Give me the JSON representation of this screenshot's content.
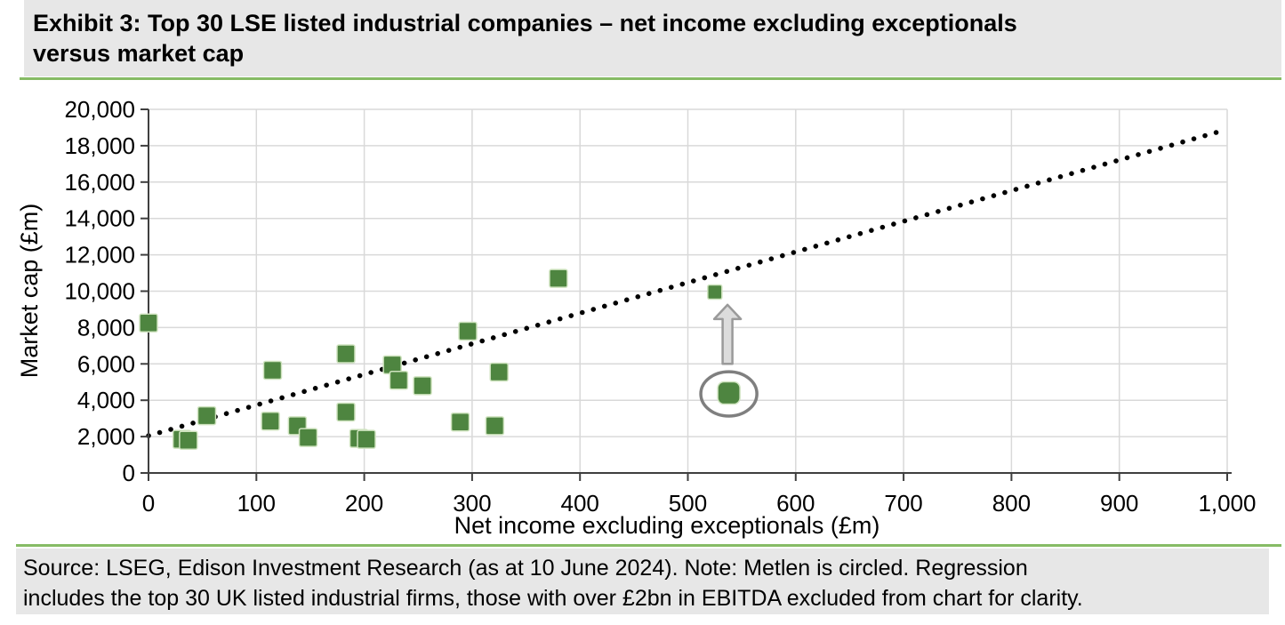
{
  "header": {
    "title_lines": [
      "Exhibit 3: Top 30 LSE listed industrial companies – net income excluding exceptionals",
      "versus market cap"
    ]
  },
  "footer": {
    "source_lines": [
      "Source: LSEG, Edison Investment Research (as at 10 June 2024). Note: Metlen is circled. Regression",
      "includes the top 30 UK listed industrial firms, those with over £2bn in EBITDA excluded from chart for clarity."
    ]
  },
  "colors": {
    "marker_green": "#4e8540",
    "marker_edge": "#cfe3bf",
    "grid_gray": "#d9d9d9",
    "axis_gray": "#3f3f3f",
    "annotation_gray": "#7f7f7f",
    "arrow_fill": "#dcdcdc",
    "accent_green": "#86bb65",
    "panel_gray": "#e7e7e7",
    "dotted_line": "#000000"
  },
  "chart_data": {
    "type": "scatter",
    "title": "Exhibit 3: Top 30 LSE listed industrial companies – net income excluding exceptionals versus market cap",
    "xlabel": "Net income excluding exceptionals (£m)",
    "ylabel": "Market cap (£m)",
    "xlim": [
      0,
      1000
    ],
    "ylim": [
      0,
      20000
    ],
    "grid": true,
    "legend": "none",
    "marker": "square",
    "x_ticks": {
      "values": [
        0,
        100,
        200,
        300,
        400,
        500,
        600,
        700,
        800,
        900,
        1000
      ],
      "labels": [
        "0",
        "100",
        "200",
        "300",
        "400",
        "500",
        "600",
        "700",
        "800",
        "900",
        "1,000"
      ]
    },
    "y_ticks": {
      "values": [
        0,
        2000,
        4000,
        6000,
        8000,
        10000,
        12000,
        14000,
        16000,
        18000,
        20000
      ],
      "labels": [
        "0",
        "2,000",
        "4,000",
        "6,000",
        "8,000",
        "10,000",
        "12,000",
        "14,000",
        "16,000",
        "18,000",
        "20,000"
      ]
    },
    "points": [
      [
        0,
        8250
      ],
      [
        31,
        1850
      ],
      [
        37,
        1800
      ],
      [
        54,
        3150
      ],
      [
        113,
        2850
      ],
      [
        115,
        5650
      ],
      [
        138,
        2600
      ],
      [
        148,
        1950
      ],
      [
        183,
        6550
      ],
      [
        183,
        3350
      ],
      [
        195,
        1900
      ],
      [
        202,
        1850
      ],
      [
        226,
        5950
      ],
      [
        232,
        5100
      ],
      [
        254,
        4800
      ],
      [
        289,
        2800
      ],
      [
        296,
        7800
      ],
      [
        321,
        2600
      ],
      [
        325,
        5550
      ],
      [
        380,
        10700
      ],
      [
        525,
        9950,
        16
      ]
    ],
    "highlighted_point": {
      "label": "Metlen",
      "x": 538,
      "y": 4400,
      "circled": true,
      "circle_rx_units": 26,
      "circle_ry_units": 1220,
      "arrow": {
        "x": 538,
        "from_y": 6000,
        "to_y": 9250
      }
    },
    "regression_line": {
      "style": "dotted",
      "x1": 0,
      "y1": 2050,
      "x2": 1000,
      "y2": 18900
    }
  }
}
